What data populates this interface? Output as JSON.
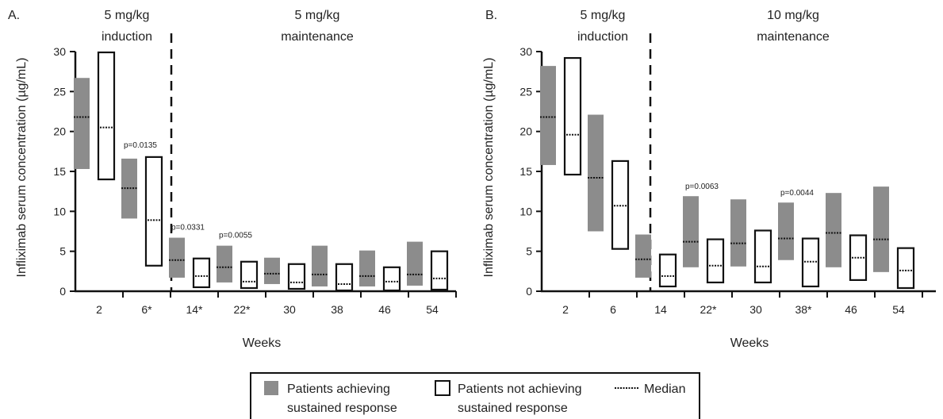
{
  "chart_data": [
    {
      "type": "box",
      "panel_label": "A.",
      "phases": {
        "induction": [
          "5 mg/kg",
          "induction"
        ],
        "maintenance": [
          "5 mg/kg",
          "maintenance"
        ]
      },
      "xlabel": "Weeks",
      "ylabel": "Infliximab serum concentration (µg/mL)",
      "ylim": [
        0,
        30
      ],
      "yticks": [
        "0",
        "5",
        "10",
        "15",
        "20",
        "25",
        "30"
      ],
      "categories": [
        "2",
        "6*",
        "14*",
        "22*",
        "30",
        "38",
        "46",
        "54"
      ],
      "achieving": [
        {
          "low": 15.3,
          "median": 21.8,
          "high": 26.7
        },
        {
          "low": 9.1,
          "median": 12.9,
          "high": 16.6
        },
        {
          "low": 1.7,
          "median": 3.9,
          "high": 6.7
        },
        {
          "low": 1.1,
          "median": 3.0,
          "high": 5.7
        },
        {
          "low": 0.9,
          "median": 2.2,
          "high": 4.2
        },
        {
          "low": 0.6,
          "median": 2.1,
          "high": 5.7
        },
        {
          "low": 0.6,
          "median": 1.9,
          "high": 5.1
        },
        {
          "low": 0.7,
          "median": 2.1,
          "high": 6.2
        }
      ],
      "not_achieving": [
        {
          "low": 14.0,
          "median": 20.5,
          "high": 29.9
        },
        {
          "low": 3.2,
          "median": 8.9,
          "high": 16.8
        },
        {
          "low": 0.5,
          "median": 1.9,
          "high": 4.1
        },
        {
          "low": 0.4,
          "median": 1.2,
          "high": 3.7
        },
        {
          "low": 0.3,
          "median": 1.1,
          "high": 3.4
        },
        {
          "low": 0.1,
          "median": 0.9,
          "high": 3.4
        },
        {
          "low": 0.1,
          "median": 1.2,
          "high": 3.0
        },
        {
          "low": 0.2,
          "median": 1.6,
          "high": 5.0
        }
      ],
      "pvalues": [
        {
          "category_index": 1,
          "text": "p=0.0135",
          "y": 18.0
        },
        {
          "category_index": 2,
          "text": "p=0.0331",
          "y": 7.7
        },
        {
          "category_index": 3,
          "text": "p=0.0055",
          "y": 6.7
        }
      ]
    },
    {
      "type": "box",
      "panel_label": "B.",
      "phases": {
        "induction": [
          "5 mg/kg",
          "induction"
        ],
        "maintenance": [
          "10 mg/kg",
          "maintenance"
        ]
      },
      "xlabel": "Weeks",
      "ylabel": "Infliximab serum concentration (µg/mL)",
      "ylim": [
        0,
        30
      ],
      "yticks": [
        "0",
        "5",
        "10",
        "15",
        "20",
        "25",
        "30"
      ],
      "categories": [
        "2",
        "6",
        "14",
        "22*",
        "30",
        "38*",
        "46",
        "54"
      ],
      "achieving": [
        {
          "low": 15.8,
          "median": 21.8,
          "high": 28.2
        },
        {
          "low": 7.5,
          "median": 14.2,
          "high": 22.1
        },
        {
          "low": 1.7,
          "median": 4.0,
          "high": 7.1
        },
        {
          "low": 3.0,
          "median": 6.2,
          "high": 11.9
        },
        {
          "low": 3.1,
          "median": 6.0,
          "high": 11.5
        },
        {
          "low": 3.9,
          "median": 6.6,
          "high": 11.1
        },
        {
          "low": 3.0,
          "median": 7.3,
          "high": 12.3
        },
        {
          "low": 2.4,
          "median": 6.5,
          "high": 13.1
        }
      ],
      "not_achieving": [
        {
          "low": 14.6,
          "median": 19.6,
          "high": 29.2
        },
        {
          "low": 5.3,
          "median": 10.7,
          "high": 16.3
        },
        {
          "low": 0.6,
          "median": 1.9,
          "high": 4.6
        },
        {
          "low": 1.1,
          "median": 3.2,
          "high": 6.5
        },
        {
          "low": 1.1,
          "median": 3.1,
          "high": 7.6
        },
        {
          "low": 0.6,
          "median": 3.7,
          "high": 6.6
        },
        {
          "low": 1.4,
          "median": 4.2,
          "high": 7.0
        },
        {
          "low": 0.4,
          "median": 2.6,
          "high": 5.4
        }
      ],
      "pvalues": [
        {
          "category_index": 3,
          "text": "p=0.0063",
          "y": 12.8
        },
        {
          "category_index": 5,
          "text": "p=0.0044",
          "y": 12.0
        }
      ]
    }
  ],
  "legend": {
    "achieving": [
      "Patients achieving",
      "sustained response"
    ],
    "not_achieving": [
      "Patients not achieving",
      "sustained response"
    ],
    "median": "Median"
  },
  "colors": {
    "achieving_fill": "#8c8c8c",
    "not_achieving_fill": "#ffffff",
    "outline": "#111111"
  }
}
